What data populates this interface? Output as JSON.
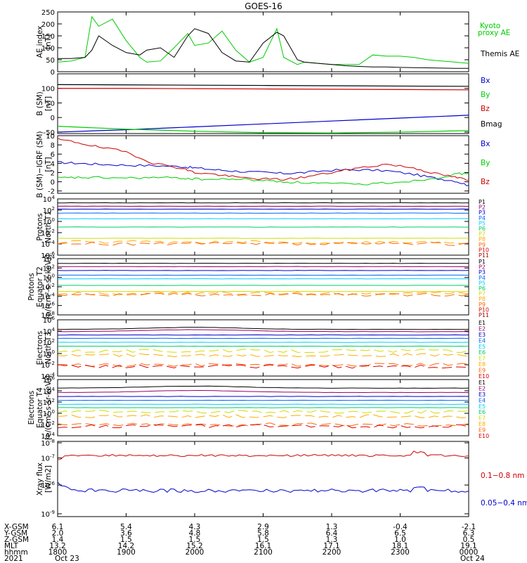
{
  "title": "GOES-16",
  "chart_data": [
    {
      "type": "line",
      "panel": "ae_index",
      "ylabel": [
        "AE index",
        "[nT]"
      ],
      "ylim": [
        0,
        250
      ],
      "yticks": [
        "0",
        "50",
        "100",
        "150",
        "200",
        "250"
      ],
      "ytick_values": [
        0,
        50,
        100,
        150,
        200,
        250
      ],
      "x_hours": [
        0.0,
        0.2,
        0.4,
        0.5,
        0.6,
        0.8,
        1.0,
        1.2,
        1.3,
        1.5,
        1.7,
        1.9,
        2.0,
        2.2,
        2.4,
        2.6,
        2.8,
        3.0,
        3.2,
        3.3,
        3.5,
        3.6,
        3.8,
        4.0,
        4.2,
        4.4,
        4.6,
        4.8,
        5.0,
        5.2,
        5.4,
        5.6,
        5.8,
        6.0
      ],
      "series": [
        {
          "name": "Kyoto proxy AE",
          "color": "#00cc00",
          "values": [
            40,
            45,
            60,
            230,
            190,
            220,
            130,
            60,
            40,
            45,
            100,
            160,
            110,
            120,
            170,
            90,
            40,
            60,
            180,
            60,
            30,
            40,
            35,
            30,
            30,
            30,
            70,
            65,
            65,
            60,
            50,
            45,
            40,
            35
          ]
        },
        {
          "name": "Themis AE",
          "color": "#000000",
          "values": [
            55,
            55,
            60,
            90,
            150,
            110,
            80,
            70,
            90,
            100,
            60,
            150,
            180,
            160,
            80,
            45,
            40,
            120,
            165,
            150,
            50,
            40,
            35,
            30,
            25,
            22,
            20,
            20,
            18,
            17,
            16,
            15,
            14,
            14
          ]
        }
      ]
    },
    {
      "type": "line",
      "panel": "b_sm",
      "ylabel": [
        "B (SM)",
        "[nT]"
      ],
      "ylim": [
        -55,
        150
      ],
      "yticks": [
        "-50",
        "0",
        "50",
        "100"
      ],
      "ytick_values": [
        -50,
        0,
        50,
        100
      ],
      "x_hours": [
        0,
        1,
        2,
        3,
        4,
        5,
        6
      ],
      "series": [
        {
          "name": "Bx",
          "color": "#0000cc",
          "values": [
            -50,
            -42,
            -32,
            -22,
            -12,
            -2,
            8
          ]
        },
        {
          "name": "By",
          "color": "#00cc00",
          "values": [
            -30,
            -40,
            -47,
            -52,
            -53,
            -50,
            -45
          ]
        },
        {
          "name": "Bz",
          "color": "#cc0000",
          "values": [
            100,
            100,
            99,
            98,
            97,
            96,
            95
          ]
        },
        {
          "name": "Bmag",
          "color": "#000000",
          "values": [
            113,
            112,
            111,
            110,
            109,
            108,
            107
          ]
        }
      ]
    },
    {
      "type": "line",
      "panel": "b_minus_igrf",
      "ylabel": [
        "B (SM)−IGRF (SM)",
        "[nT]"
      ],
      "ylim": [
        -2.5,
        10
      ],
      "yticks": [
        "-2",
        "0",
        "2",
        "4",
        "6",
        "8",
        "10"
      ],
      "ytick_values": [
        -2,
        0,
        2,
        4,
        6,
        8,
        10
      ],
      "x_hours": [
        0.0,
        0.3,
        0.6,
        1.0,
        1.4,
        1.8,
        2.0,
        2.3,
        2.6,
        3.0,
        3.3,
        3.6,
        4.0,
        4.4,
        4.8,
        5.2,
        5.5,
        5.8,
        6.0
      ],
      "series": [
        {
          "name": "Bx",
          "color": "#0000cc",
          "values": [
            4.2,
            4.0,
            3.8,
            3.6,
            3.5,
            3.3,
            3.0,
            2.6,
            2.3,
            2.0,
            1.8,
            2.0,
            2.5,
            2.6,
            2.4,
            1.6,
            0.8,
            0.2,
            -0.8
          ]
        },
        {
          "name": "By",
          "color": "#00cc00",
          "values": [
            0.8,
            0.9,
            0.9,
            0.8,
            0.9,
            0.8,
            0.6,
            0.5,
            0.6,
            0.3,
            0.0,
            -0.2,
            -0.4,
            -0.6,
            -0.2,
            0.2,
            0.8,
            1.6,
            1.9
          ]
        },
        {
          "name": "Bz",
          "color": "#cc0000",
          "values": [
            9.2,
            8.5,
            7.5,
            6.5,
            4.0,
            3.0,
            2.0,
            1.6,
            1.0,
            0.6,
            0.5,
            1.0,
            2.0,
            3.0,
            3.8,
            3.0,
            1.8,
            1.0,
            0.3
          ]
        }
      ]
    },
    {
      "type": "line",
      "panel": "protons_t1",
      "ylabel": [
        "Protons",
        "North T1"
      ],
      "ylim_log10": [
        -6,
        4
      ],
      "yticks": [
        "10^4",
        "10^2",
        "10^0",
        "10^-2",
        "10^-4",
        "10^-6"
      ],
      "ytick_values": [
        10000,
        100,
        1,
        0.01,
        0.0001,
        1e-06
      ],
      "series": [
        {
          "name": "P1",
          "color": "#000000",
          "values": [
            2000
          ]
        },
        {
          "name": "P2",
          "color": "#990066",
          "values": [
            500
          ]
        },
        {
          "name": "P3",
          "color": "#0000cc",
          "values": [
            150
          ]
        },
        {
          "name": "P4",
          "color": "#0066ff",
          "values": [
            30
          ]
        },
        {
          "name": "P5",
          "color": "#00ccff",
          "values": [
            3
          ]
        },
        {
          "name": "P6",
          "color": "#00cc66",
          "values": [
            0.1
          ]
        },
        {
          "name": "P7",
          "color": "#ccdd00",
          "values": [
            0.001
          ]
        },
        {
          "name": "P8",
          "color": "#ffaa00",
          "values": [
            0.0002
          ]
        },
        {
          "name": "P9",
          "color": "#ff6600",
          "values": [
            0.0001
          ]
        },
        {
          "name": "P10",
          "color": "#dd0000",
          "values": [
            5e-05
          ]
        },
        {
          "name": "P11",
          "color": "#aa0000",
          "values": [
            3e-05
          ]
        }
      ]
    },
    {
      "type": "line",
      "panel": "protons_t2",
      "ylabel": [
        "Protons",
        "Equator T2",
        "[p/(cm²-s-sr-keV)]"
      ],
      "ylim_log10": [
        -8,
        4
      ],
      "yticks": [
        "10^4",
        "10^2",
        "10^0",
        "10^-2",
        "10^-4",
        "10^-6",
        "10^-8"
      ],
      "ytick_values": [
        10000,
        100,
        1,
        0.01,
        0.0001,
        1e-06,
        1e-08
      ],
      "series": [
        {
          "name": "P1",
          "color": "#000000",
          "values": [
            1000
          ]
        },
        {
          "name": "P2",
          "color": "#990066",
          "values": [
            200
          ]
        },
        {
          "name": "P3",
          "color": "#0000cc",
          "values": [
            30
          ]
        },
        {
          "name": "P4",
          "color": "#0066ff",
          "values": [
            3
          ]
        },
        {
          "name": "P5",
          "color": "#00ccff",
          "values": [
            0.5
          ]
        },
        {
          "name": "P6",
          "color": "#00cc66",
          "values": [
            0.02
          ]
        },
        {
          "name": "P7",
          "color": "#ccdd00",
          "values": [
            0.001
          ]
        },
        {
          "name": "P8",
          "color": "#ffaa00",
          "values": [
            0.0004
          ]
        },
        {
          "name": "P9",
          "color": "#ff6600",
          "values": [
            0.0002
          ]
        },
        {
          "name": "P10",
          "color": "#dd0000",
          "values": [
            0.0001
          ]
        },
        {
          "name": "P11",
          "color": "#aa0000",
          "values": [
            5e-05
          ]
        }
      ]
    },
    {
      "type": "line",
      "panel": "electrons_t3",
      "ylabel": [
        "Electrons",
        "North T3"
      ],
      "ylim_log10": [
        -4,
        6
      ],
      "yticks": [
        "10^6",
        "10^4",
        "10^2",
        "10^0",
        "10^-2",
        "10^-4"
      ],
      "ytick_values": [
        1000000,
        10000,
        100,
        1,
        0.01,
        0.0001
      ],
      "series": [
        {
          "name": "E1",
          "color": "#000000",
          "values": [
            20000
          ]
        },
        {
          "name": "E2",
          "color": "#990066",
          "values": [
            8000
          ]
        },
        {
          "name": "E3",
          "color": "#0000cc",
          "values": [
            2000
          ]
        },
        {
          "name": "E4",
          "color": "#0066ff",
          "values": [
            500
          ]
        },
        {
          "name": "E5",
          "color": "#00ccff",
          "values": [
            100
          ]
        },
        {
          "name": "E6",
          "color": "#00cc66",
          "values": [
            20
          ]
        },
        {
          "name": "E7",
          "color": "#ccdd00",
          "values": [
            3
          ]
        },
        {
          "name": "E8",
          "color": "#ffaa00",
          "values": [
            0.5
          ]
        },
        {
          "name": "E9",
          "color": "#ff6600",
          "values": [
            0.01
          ]
        },
        {
          "name": "E10",
          "color": "#dd0000",
          "values": [
            0.005
          ]
        }
      ]
    },
    {
      "type": "line",
      "panel": "electrons_t4",
      "ylabel": [
        "Electrons",
        "Equator T4",
        "[e/(cm²-s-sr-keV)]"
      ],
      "ylim_log10": [
        -4,
        6
      ],
      "yticks": [
        "10^6",
        "10^4",
        "10^2",
        "10^0",
        "10^-2",
        "10^-4"
      ],
      "ytick_values": [
        1000000,
        10000,
        100,
        1,
        0.01,
        0.0001
      ],
      "series": [
        {
          "name": "E1",
          "color": "#000000",
          "values": [
            30000
          ]
        },
        {
          "name": "E2",
          "color": "#990066",
          "values": [
            5000
          ]
        },
        {
          "name": "E3",
          "color": "#0000cc",
          "values": [
            1000
          ]
        },
        {
          "name": "E4",
          "color": "#0066ff",
          "values": [
            200
          ]
        },
        {
          "name": "E5",
          "color": "#00ccff",
          "values": [
            40
          ]
        },
        {
          "name": "E6",
          "color": "#00cc66",
          "values": [
            10
          ]
        },
        {
          "name": "E7",
          "color": "#ccdd00",
          "values": [
            2
          ]
        },
        {
          "name": "E8",
          "color": "#ffaa00",
          "values": [
            0.3
          ]
        },
        {
          "name": "E9",
          "color": "#ff6600",
          "values": [
            0.01
          ]
        },
        {
          "name": "E10",
          "color": "#dd0000",
          "values": [
            0.005
          ]
        }
      ]
    },
    {
      "type": "line",
      "panel": "xray_flux",
      "ylabel": [
        "Xray flux",
        "[W/m2]"
      ],
      "ylim_log10": [
        -9,
        -8
      ],
      "yticks": [
        "10^-8",
        "10^-7",
        "10^-6",
        "10^-9"
      ],
      "ytick_values": [
        1e-08,
        1e-07,
        1e-06,
        1e-09
      ],
      "series": [
        {
          "name": "0.1−0.8 nm",
          "color": "#cc0000",
          "values": [
            2.5e-07
          ]
        },
        {
          "name": "0.05−0.4 nm",
          "color": "#0000cc",
          "values": [
            8e-10
          ]
        }
      ]
    }
  ],
  "legends": {
    "ae": [
      {
        "text": "Kyoto",
        "color": "#00cc00"
      },
      {
        "text": "proxy AE",
        "color": "#00cc00"
      },
      {
        "text": "Themis AE",
        "color": "#000000"
      }
    ],
    "bsm": [
      {
        "text": "Bx",
        "color": "#0000cc"
      },
      {
        "text": "By",
        "color": "#00cc00"
      },
      {
        "text": "Bz",
        "color": "#cc0000"
      },
      {
        "text": "Bmag",
        "color": "#000000"
      }
    ],
    "digrf": [
      {
        "text": "Bx",
        "color": "#0000cc"
      },
      {
        "text": "By",
        "color": "#00cc00"
      },
      {
        "text": "Bz",
        "color": "#cc0000"
      }
    ],
    "xray": [
      {
        "text": "0.1−0.8 nm",
        "color": "#cc0000"
      },
      {
        "text": "0.05−0.4 nm",
        "color": "#0000cc"
      }
    ]
  },
  "ephemeris": {
    "rows": [
      {
        "label": "X-GSM",
        "values": [
          "6.1",
          "5.4",
          "4.3",
          "2.9",
          "1.3",
          "-0.4",
          "-2.1"
        ]
      },
      {
        "label": "Y-GSM",
        "values": [
          "2.0",
          "3.6",
          "4.8",
          "5.8",
          "6.4",
          "6.5",
          "6.3"
        ]
      },
      {
        "label": "Z-GSM",
        "values": [
          "1.4",
          "1.5",
          "1.5",
          "1.5",
          "1.3",
          "1.0",
          "0.5"
        ]
      },
      {
        "label": "MLT",
        "values": [
          "13.2",
          "14.2",
          "15.2",
          "16.1",
          "17.1",
          "18.1",
          "19.1"
        ]
      },
      {
        "label": "hhmm",
        "values": [
          "1800",
          "1900",
          "2000",
          "2100",
          "2200",
          "2300",
          "0000"
        ]
      },
      {
        "label": "2021",
        "values": [
          "Oct 23",
          "",
          "",
          "",
          "",
          "",
          "Oct 24"
        ]
      }
    ]
  }
}
